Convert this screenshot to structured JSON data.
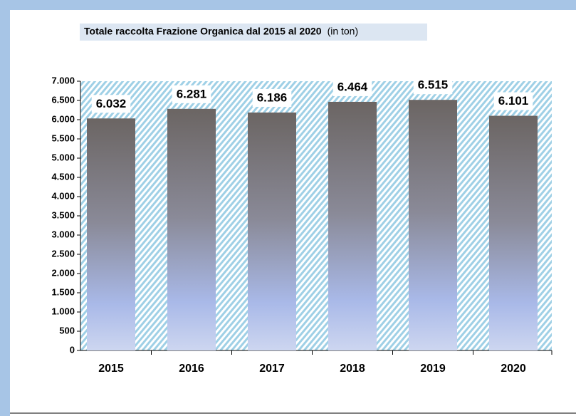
{
  "chart_data": {
    "type": "bar",
    "title": "Totale raccolta Frazione Organica dal 2015 al 2020",
    "subtitle": "(in ton)",
    "categories": [
      "2015",
      "2016",
      "2017",
      "2018",
      "2019",
      "2020"
    ],
    "values": [
      6032,
      6281,
      6186,
      6464,
      6515,
      6101
    ],
    "value_labels": [
      "6.032",
      "6.281",
      "6.186",
      "6.464",
      "6.515",
      "6.101"
    ],
    "ylim": [
      0,
      7000
    ],
    "yticks": [
      0,
      500,
      {
        "value": 1000,
        "label": "1.000"
      },
      {
        "value": 1500,
        "label": "1.500"
      },
      {
        "value": 2000,
        "label": "2.000"
      },
      {
        "value": 2500,
        "label": "2.500"
      },
      {
        "value": 3000,
        "label": "3.000"
      },
      {
        "value": 3500,
        "label": "3.500"
      },
      {
        "value": 4000,
        "label": "4.000"
      },
      {
        "value": 4500,
        "label": "4.500"
      },
      {
        "value": 5000,
        "label": "5.000"
      },
      {
        "value": 5500,
        "label": "5.500"
      },
      {
        "value": 6000,
        "label": "6.000"
      },
      {
        "value": 6500,
        "label": "6.500"
      },
      {
        "value": 7000,
        "label": "7.000"
      }
    ]
  }
}
